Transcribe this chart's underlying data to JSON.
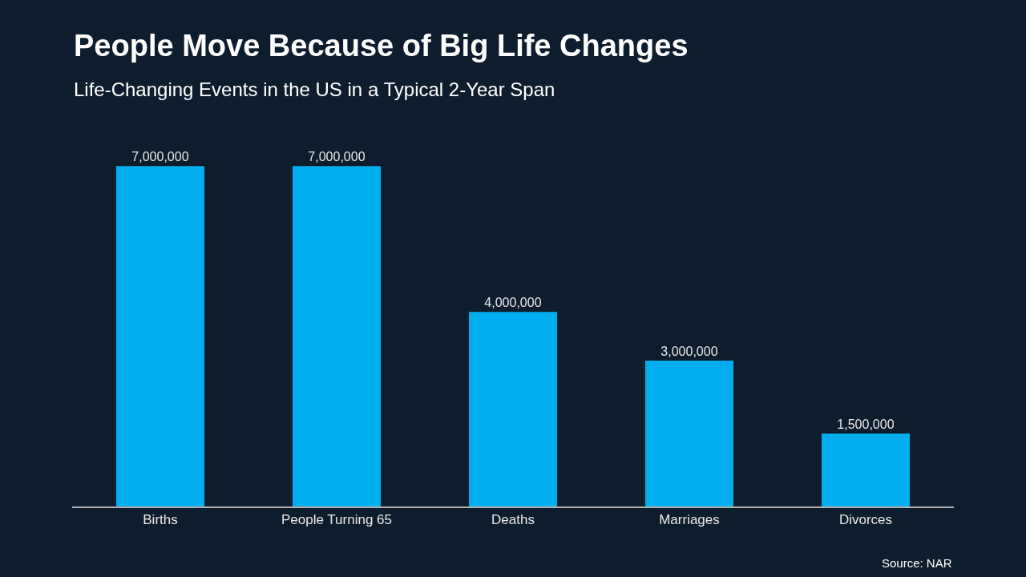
{
  "chart_data": {
    "type": "bar",
    "title": "People Move Because of Big Life Changes",
    "subtitle": "Life-Changing Events in the US in a Typical 2-Year Span",
    "categories": [
      "Births",
      "People Turning 65",
      "Deaths",
      "Marriages",
      "Divorces"
    ],
    "values": [
      7000000,
      7000000,
      4000000,
      3000000,
      1500000
    ],
    "color": "#00aeef",
    "value_labels": [
      "7,000,000",
      "7,000,000",
      "4,000,000",
      "3,000,000",
      "1,500,000"
    ],
    "annotations": [
      "Source: NAR"
    ]
  }
}
